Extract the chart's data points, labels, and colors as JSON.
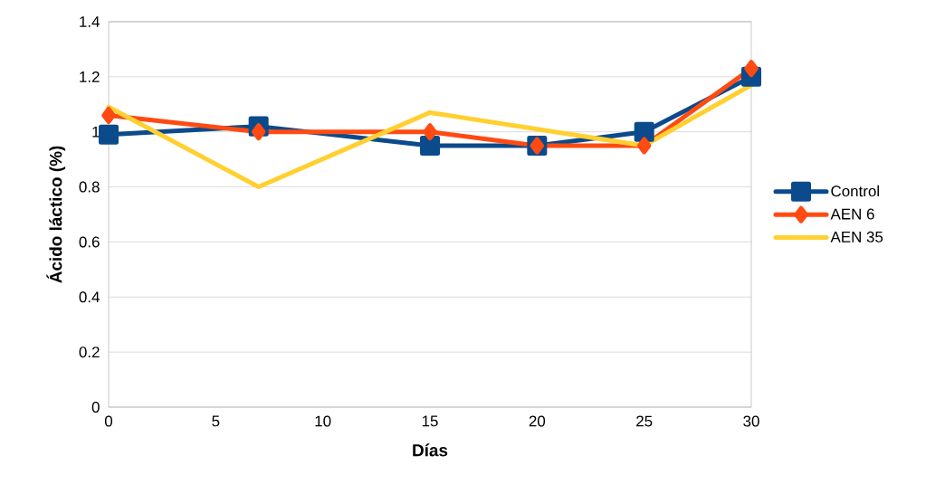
{
  "chart_data": {
    "type": "line",
    "xlabel": "Días",
    "ylabel": "Ácido láctico (%)",
    "x": [
      0,
      7,
      15,
      20,
      25,
      30
    ],
    "series": [
      {
        "name": "Control",
        "color": "#0b4a8b",
        "marker": "square",
        "values": [
          0.99,
          1.02,
          0.95,
          0.95,
          1.0,
          1.2
        ]
      },
      {
        "name": "AEN 6",
        "color": "#ff4a12",
        "marker": "diamond",
        "values": [
          1.06,
          1.0,
          1.0,
          0.95,
          0.95,
          1.23
        ]
      },
      {
        "name": "AEN 35",
        "color": "#ffd030",
        "marker": "none",
        "values": [
          1.09,
          0.8,
          1.07,
          1.01,
          0.95,
          1.17
        ]
      }
    ],
    "xlim": [
      0,
      30
    ],
    "xticks": [
      0,
      5,
      10,
      15,
      20,
      25,
      30
    ],
    "ylim": [
      0,
      1.4
    ],
    "yticks": [
      0,
      0.2,
      0.4,
      0.6,
      0.8,
      1,
      1.2,
      1.4
    ],
    "grid": "y",
    "legend": "right",
    "line_style": "solid"
  }
}
